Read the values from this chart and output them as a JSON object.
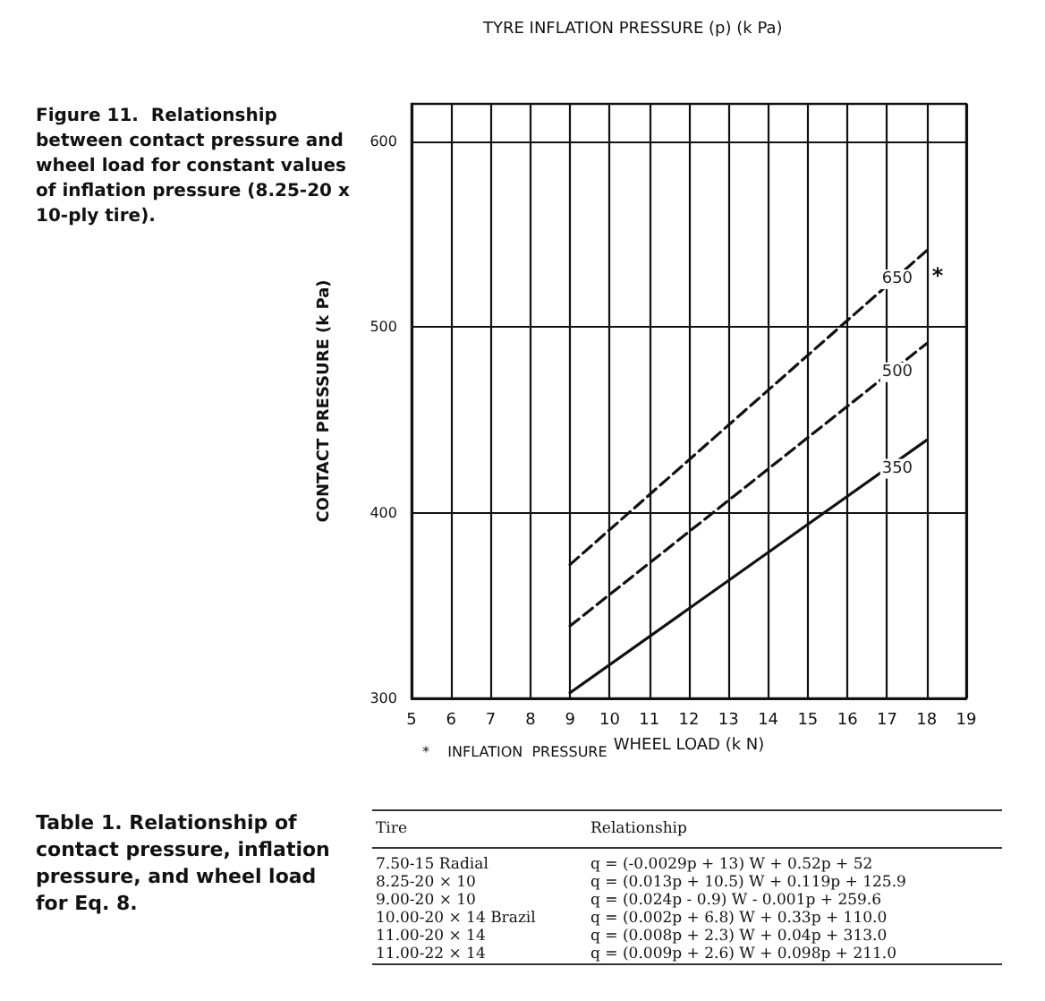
{
  "chart_data": [
    {
      "type": "line",
      "title": "Figure 11.  Relationship between contact pressure and wheel load for constant values of inflation pressure (8.25-20 x 10-ply tire).",
      "subtitle": "TYRE INFLATION PRESSURE (p) (k Pa)",
      "xlabel": "WHEEL LOAD (k N)",
      "ylabel": "CONTACT PRESSURE (k Pa)",
      "x": [
        9,
        18
      ],
      "series": [
        {
          "name": "650",
          "color": "#111111",
          "values": [
            372,
            541
          ],
          "line_style": "dashed"
        },
        {
          "name": "500",
          "color": "#111111",
          "values": [
            339,
            491
          ],
          "line_style": "dashed"
        },
        {
          "name": "350",
          "color": "#111111",
          "values": [
            303,
            439
          ],
          "line_style": "solid"
        }
      ],
      "xlim": [
        5,
        19
      ],
      "xticks": [
        5,
        6,
        7,
        8,
        9,
        10,
        11,
        12,
        13,
        14,
        15,
        16,
        17,
        18,
        19
      ],
      "ylim": [
        300,
        620
      ],
      "yticks": [
        300,
        400,
        500,
        600
      ],
      "grid": true,
      "legend": false,
      "annotations": [
        "*",
        "*    INFLATION  PRESSURE"
      ]
    },
    {
      "type": "other",
      "title": "Table 1.  Relationship of contact pressure, inflation pressure, and wheel load for Eq. 8.",
      "annotations": [
        "Tire",
        "Relationship",
        "7.50-15 Radial",
        "q = (-0.0029p + 13) W + 0.52p + 52",
        "8.25-20 × 10",
        "q = (0.013p + 10.5) W + 0.119p + 125.9",
        "9.00-20 × 10",
        "q = (0.024p - 0.9) W - 0.001p + 259.6",
        "10.00-20 × 14 Brazil",
        "q = (0.002p + 6.8) W + 0.33p + 110.0",
        "11.00-20 × 14",
        "q = (0.008p + 2.3) W + 0.04p + 313.0",
        "11.00-22 × 14",
        "q = (0.009p + 2.6) W + 0.098p + 211.0"
      ]
    }
  ]
}
